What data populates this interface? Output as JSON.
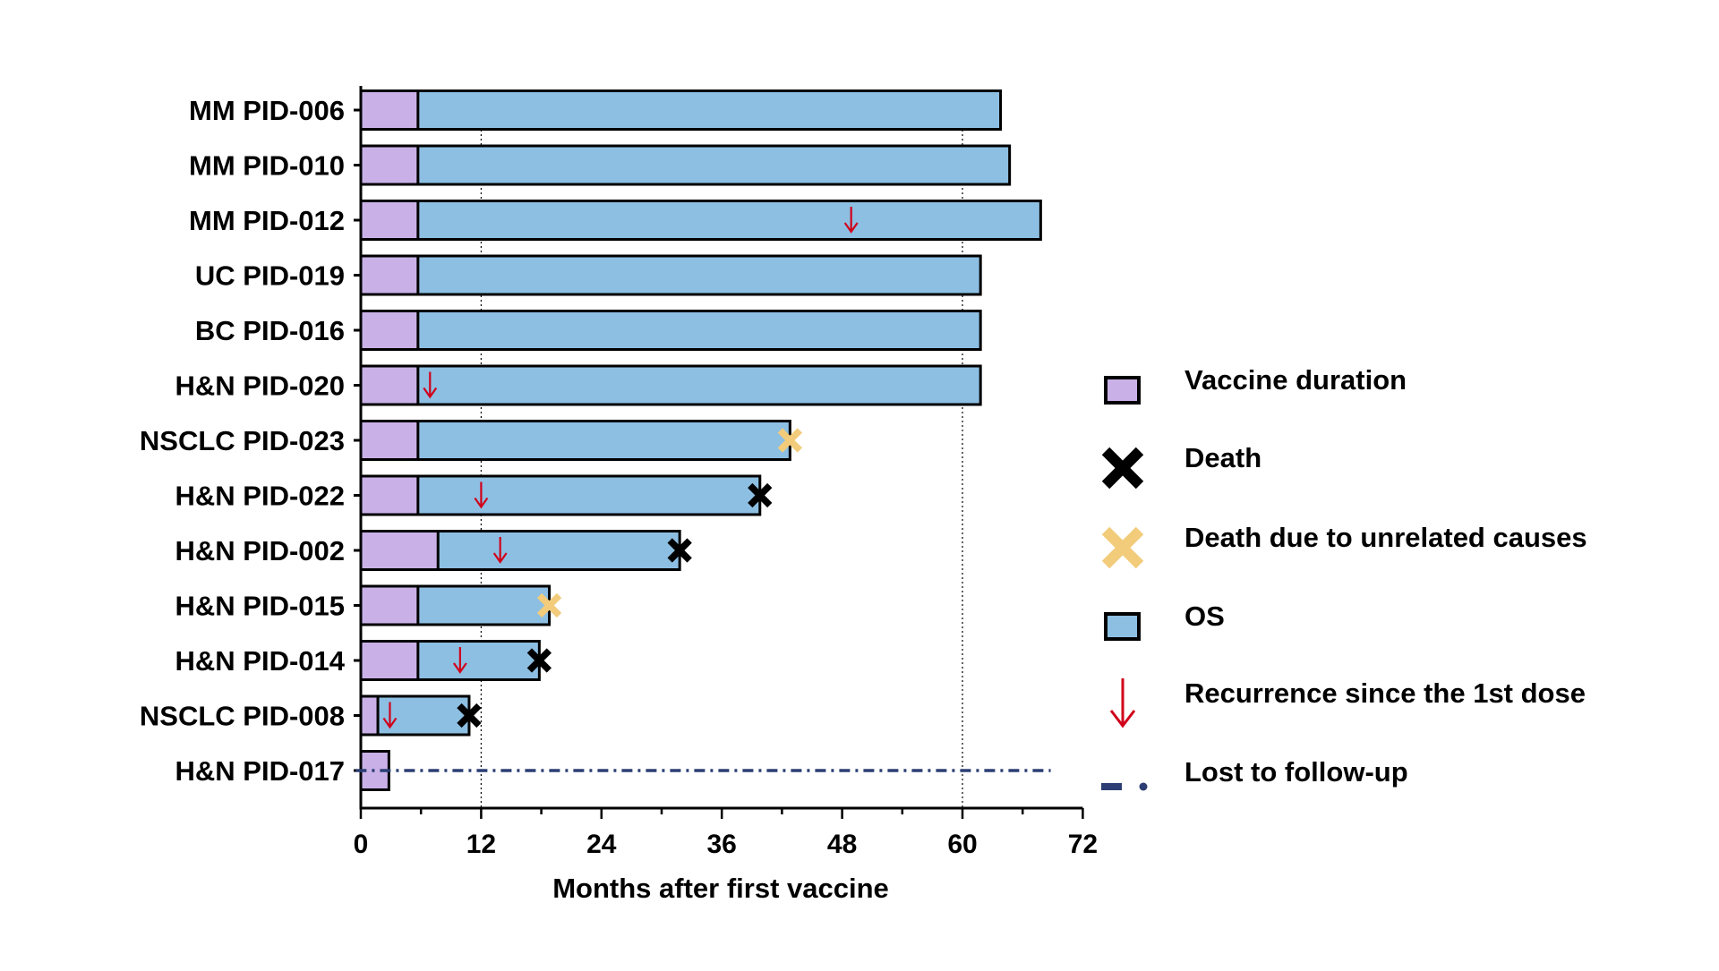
{
  "chart_data": {
    "type": "bar",
    "subtype": "swimmer-plot",
    "title": "",
    "xlabel": "Months after first vaccine",
    "ylabel": "",
    "xlim": [
      0,
      72
    ],
    "xticks": [
      0,
      12,
      24,
      36,
      48,
      60,
      72
    ],
    "reference_lines_x": [
      12,
      60
    ],
    "grid": false,
    "legend_position": "right",
    "colors": {
      "vaccine": "#c9b1e8",
      "os": "#8dbfe3",
      "death": "#000000",
      "death_unrelated": "#f2cc7b",
      "recurrence": "#d0021b",
      "lost_followup": "#2c3e73"
    },
    "patients": [
      {
        "label": "MM PID-006",
        "vaccine_end": 5.7,
        "os": 63.8,
        "event": "none",
        "recurrence": null,
        "lost_to_followup": false
      },
      {
        "label": "MM PID-010",
        "vaccine_end": 5.7,
        "os": 64.7,
        "event": "none",
        "recurrence": null,
        "lost_to_followup": false
      },
      {
        "label": "MM PID-012",
        "vaccine_end": 5.7,
        "os": 67.8,
        "event": "none",
        "recurrence": 48.9,
        "lost_to_followup": false
      },
      {
        "label": "UC PID-019",
        "vaccine_end": 5.7,
        "os": 61.8,
        "event": "none",
        "recurrence": null,
        "lost_to_followup": false
      },
      {
        "label": "BC PID-016",
        "vaccine_end": 5.7,
        "os": 61.8,
        "event": "none",
        "recurrence": null,
        "lost_to_followup": false
      },
      {
        "label": "H&N PID-020",
        "vaccine_end": 5.7,
        "os": 61.8,
        "event": "none",
        "recurrence": 6.9,
        "lost_to_followup": false
      },
      {
        "label": "NSCLC PID-023",
        "vaccine_end": 5.7,
        "os": 42.8,
        "event": "death_unrelated",
        "recurrence": null,
        "lost_to_followup": false
      },
      {
        "label": "H&N PID-022",
        "vaccine_end": 5.7,
        "os": 39.8,
        "event": "death",
        "recurrence": 12.0,
        "lost_to_followup": false
      },
      {
        "label": "H&N PID-002",
        "vaccine_end": 7.7,
        "os": 31.8,
        "event": "death",
        "recurrence": 13.9,
        "lost_to_followup": false
      },
      {
        "label": "H&N PID-015",
        "vaccine_end": 5.7,
        "os": 18.8,
        "event": "death_unrelated",
        "recurrence": null,
        "lost_to_followup": false
      },
      {
        "label": "H&N PID-014",
        "vaccine_end": 5.7,
        "os": 17.8,
        "event": "death",
        "recurrence": 9.9,
        "lost_to_followup": false
      },
      {
        "label": "NSCLC PID-008",
        "vaccine_end": 1.7,
        "os": 10.8,
        "event": "death",
        "recurrence": 2.9,
        "lost_to_followup": false
      },
      {
        "label": "H&N PID-017",
        "vaccine_end": 2.8,
        "os": null,
        "event": "none",
        "recurrence": null,
        "lost_to_followup": true,
        "followup_line_end": 68.8
      }
    ],
    "legend": [
      {
        "key": "vaccine",
        "label": "Vaccine duration"
      },
      {
        "key": "death",
        "label": "Death"
      },
      {
        "key": "death_unrelated",
        "label": "Death due to unrelated causes"
      },
      {
        "key": "os",
        "label": "OS"
      },
      {
        "key": "recurrence",
        "label": "Recurrence since the 1st dose"
      },
      {
        "key": "lost_followup",
        "label": "Lost to follow-up"
      }
    ]
  }
}
